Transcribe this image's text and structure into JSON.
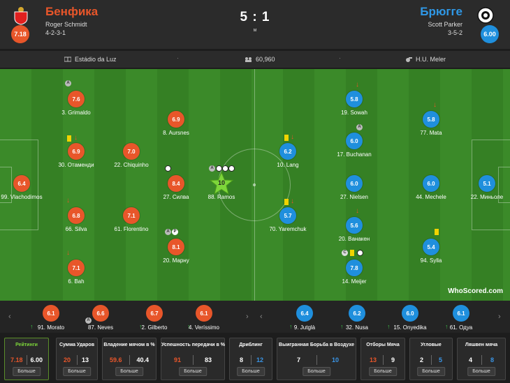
{
  "home": {
    "name": "Бенфика",
    "manager": "Roger Schmidt",
    "formation": "4-2-3-1",
    "rating": "7.18",
    "color": "#e8562a"
  },
  "away": {
    "name": "Брюгге",
    "manager": "Scott Parker",
    "formation": "3-5-2",
    "rating": "6.00",
    "color": "#1f8fdd"
  },
  "score": "5 : 1",
  "status": "м",
  "info": {
    "stadium": "Estádio da Luz",
    "attendance": "60,960",
    "referee": "H.U. Meler"
  },
  "home_players": [
    {
      "name": "99. Vlachodimos",
      "rating": "6.4"
    },
    {
      "name": "3. Grimaldo",
      "rating": "7.6"
    },
    {
      "name": "30. Отаменди",
      "rating": "6.9"
    },
    {
      "name": "66. Silva",
      "rating": "6.8"
    },
    {
      "name": "6. Bah",
      "rating": "7.1"
    },
    {
      "name": "22. Chiquinho",
      "rating": "7.0"
    },
    {
      "name": "61. Florentino",
      "rating": "7.1"
    },
    {
      "name": "8. Aursnes",
      "rating": "6.9"
    },
    {
      "name": "27. Силва",
      "rating": "8.4"
    },
    {
      "name": "20. Марну",
      "rating": "8.1"
    },
    {
      "name": "88. Ramos",
      "rating": "10"
    }
  ],
  "away_players": [
    {
      "name": "22. Миньоле",
      "rating": "5.1"
    },
    {
      "name": "19. Sowah",
      "rating": "5.8"
    },
    {
      "name": "17. Buchanan",
      "rating": "6.0"
    },
    {
      "name": "27. Nielsen",
      "rating": "6.0"
    },
    {
      "name": "20. Ванакен",
      "rating": "5.6"
    },
    {
      "name": "14. Meijer",
      "rating": "7.8"
    },
    {
      "name": "77. Mata",
      "rating": "5.8"
    },
    {
      "name": "44. Mechele",
      "rating": "6.0"
    },
    {
      "name": "94. Sylla",
      "rating": "5.4"
    },
    {
      "name": "10. Lang",
      "rating": "6.2"
    },
    {
      "name": "70. Yaremchuk",
      "rating": "5.7"
    }
  ],
  "home_subs": [
    {
      "name": "91. Morato",
      "rating": "6.1"
    },
    {
      "name": "87. Neves",
      "rating": "6.6"
    },
    {
      "name": "2. Gilberto",
      "rating": "6.7"
    },
    {
      "name": "4. Veríssimo",
      "rating": "6.1"
    }
  ],
  "away_subs": [
    {
      "name": "9. Jutglà",
      "rating": "6.4"
    },
    {
      "name": "32. Nusa",
      "rating": "6.2"
    },
    {
      "name": "15. Onyedika",
      "rating": "6.0"
    },
    {
      "name": "61. Одуа",
      "rating": "6.1"
    }
  ],
  "badges": {
    "assist": "A",
    "penalty": "P",
    "captain": "C"
  },
  "watermark": "WhoScored.com",
  "stats": [
    {
      "title": "Рейтинги",
      "home": "7.18",
      "away": "6.00",
      "button": "Больше"
    },
    {
      "title": "Сумма Ударов",
      "home": "20",
      "away": "13",
      "button": "Больше"
    },
    {
      "title": "Владение мячом в %",
      "home": "59.6",
      "away": "40.4",
      "button": "Больше"
    },
    {
      "title": "Успешность передачи в %",
      "home": "91",
      "away": "83",
      "button": "Больше"
    },
    {
      "title": "Дриблинг",
      "home": "8",
      "away": "12",
      "button": "Больше"
    },
    {
      "title": "Выигранная Борьба в Воздухе",
      "home": "7",
      "away": "10",
      "button": "Больше"
    },
    {
      "title": "Отборы Мяча",
      "home": "13",
      "away": "9",
      "button": "Больше"
    },
    {
      "title": "Угловые",
      "home": "2",
      "away": "5",
      "button": "Больше"
    },
    {
      "title": "Ляшвен мяча",
      "home": "4",
      "away": "8",
      "button": "Больше"
    }
  ]
}
